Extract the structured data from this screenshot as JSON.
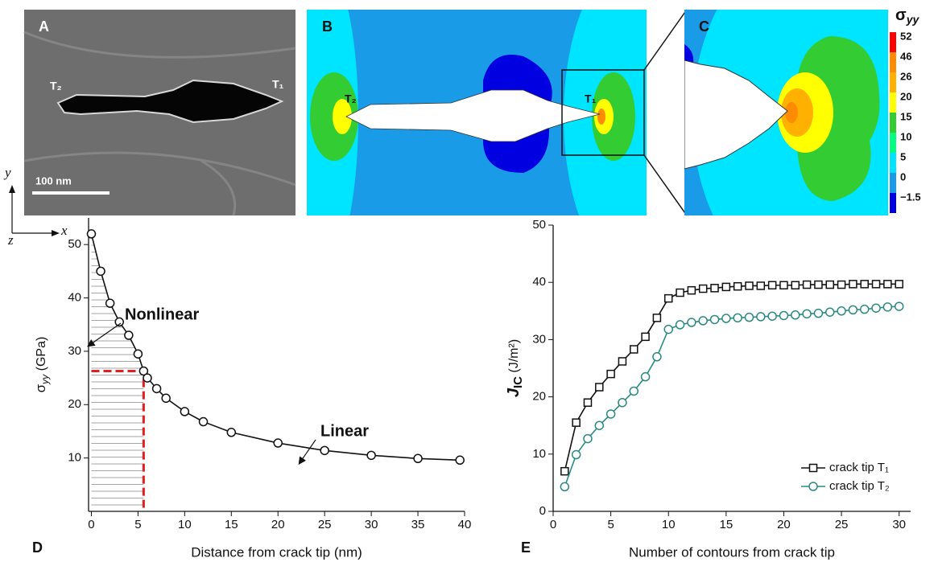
{
  "panels": {
    "a": {
      "letter": "A",
      "tip_left": "T₂",
      "tip_right": "T₁",
      "scale_bar": "100 nm"
    },
    "b": {
      "letter": "B",
      "tip_left": "T₂",
      "tip_right": "T₁"
    },
    "c": {
      "letter": "C"
    },
    "colorbar": {
      "title": {
        "symbol": "σ",
        "subscript": "yy"
      },
      "ticks": [
        52,
        46,
        26,
        20,
        15,
        10,
        5,
        0,
        {
          "value": -1.5,
          "label": "−1.5"
        }
      ],
      "colors": [
        "#ff0000",
        "#ff8c00",
        "#ffb000",
        "#ffff00",
        "#33cc33",
        "#00ff80",
        "#00e5ff",
        "#1a9be8",
        "#0000e0"
      ]
    },
    "axes_triad": {
      "y": "y",
      "x": "x",
      "z": "z"
    }
  },
  "chart_data": [
    {
      "type": "line",
      "letter": "D",
      "x_label": "Distance from crack tip (nm)",
      "y_label": {
        "symbol": "σ",
        "subscript": "yy",
        "unit": " (GPa)"
      },
      "x": [
        0,
        1,
        2,
        3,
        4,
        5,
        5.6,
        6,
        7,
        8,
        10,
        12,
        15,
        20,
        25,
        30,
        35,
        39.5
      ],
      "values": [
        52,
        45,
        39,
        35.5,
        33,
        29.5,
        26.3,
        25,
        23,
        21.2,
        18.7,
        16.8,
        14.8,
        12.8,
        11.4,
        10.5,
        9.9,
        9.6
      ],
      "color": "#111111",
      "marker": {
        "x": 5.6,
        "y": 26.3,
        "color": "#e02020"
      },
      "annotations": [
        "Nonlinear",
        "Linear"
      ],
      "xlim": [
        -0.3,
        40
      ],
      "ylim": [
        0,
        55
      ],
      "xticks": [
        0,
        5,
        10,
        15,
        20,
        25,
        30,
        35,
        40
      ],
      "yticks": [
        10,
        20,
        30,
        40,
        50
      ]
    },
    {
      "type": "line",
      "letter": "E",
      "x_label": "Number of contours from crack tip",
      "y_label": {
        "symbol": "J",
        "subscript": "IC",
        "unit": " (J/m²)"
      },
      "x": [
        1,
        2,
        3,
        4,
        5,
        6,
        7,
        8,
        9,
        10,
        11,
        12,
        13,
        14,
        15,
        16,
        17,
        18,
        19,
        20,
        21,
        22,
        23,
        24,
        25,
        26,
        27,
        28,
        29,
        30
      ],
      "series": [
        {
          "name": "crack tip T₁",
          "color": "#111111",
          "marker": "square",
          "values": [
            7,
            15.5,
            19,
            21.7,
            24,
            26.2,
            28.3,
            30.5,
            33.8,
            37.2,
            38.2,
            38.6,
            38.9,
            39,
            39.2,
            39.3,
            39.4,
            39.4,
            39.5,
            39.5,
            39.5,
            39.6,
            39.6,
            39.6,
            39.6,
            39.7,
            39.7,
            39.7,
            39.7,
            39.7
          ]
        },
        {
          "name": "crack tip T₂",
          "color": "#2a8a82",
          "marker": "circle",
          "values": [
            4.3,
            9.9,
            12.7,
            15,
            17,
            19,
            21,
            23.5,
            27,
            31.8,
            32.6,
            33,
            33.3,
            33.5,
            33.7,
            33.8,
            33.9,
            34,
            34.1,
            34.2,
            34.3,
            34.5,
            34.6,
            34.8,
            35,
            35.2,
            35.3,
            35.5,
            35.7,
            35.8
          ]
        }
      ],
      "xlim": [
        0,
        31
      ],
      "ylim": [
        0,
        50
      ],
      "xticks": [
        0,
        5,
        10,
        15,
        20,
        25,
        30
      ],
      "yticks": [
        0,
        10,
        20,
        30,
        40,
        50
      ]
    }
  ]
}
